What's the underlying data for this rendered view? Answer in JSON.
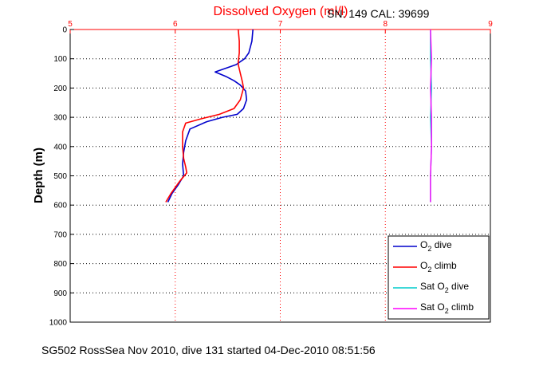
{
  "chart_data": {
    "type": "line",
    "title": "Dissolved Oxygen (ml/l)",
    "subtitle": "SN: 149  CAL: 39699",
    "xlabel": "",
    "ylabel": "Depth (m)",
    "xlim": [
      5,
      9
    ],
    "ylim": [
      1000,
      0
    ],
    "x_ticks": [
      "5",
      "6",
      "7",
      "8",
      "9"
    ],
    "x_tick_values": [
      5,
      6,
      7,
      8,
      9
    ],
    "y_ticks": [
      "0",
      "100",
      "200",
      "300",
      "400",
      "500",
      "600",
      "700",
      "800",
      "900",
      "1000"
    ],
    "y_tick_values": [
      0,
      100,
      200,
      300,
      400,
      500,
      600,
      700,
      800,
      900,
      1000
    ],
    "x_axis_position": "top",
    "grid": true,
    "legend_position": "bottom-right",
    "series": [
      {
        "name": "O2 dive",
        "color": "#0000cc",
        "points": [
          [
            6.74,
            0
          ],
          [
            6.73,
            40
          ],
          [
            6.7,
            80
          ],
          [
            6.66,
            100
          ],
          [
            6.58,
            120
          ],
          [
            6.5,
            130
          ],
          [
            6.38,
            145
          ],
          [
            6.48,
            160
          ],
          [
            6.56,
            175
          ],
          [
            6.62,
            190
          ],
          [
            6.67,
            210
          ],
          [
            6.68,
            240
          ],
          [
            6.65,
            270
          ],
          [
            6.59,
            290
          ],
          [
            6.45,
            300
          ],
          [
            6.3,
            315
          ],
          [
            6.14,
            340
          ],
          [
            6.1,
            380
          ],
          [
            6.08,
            420
          ],
          [
            6.07,
            460
          ],
          [
            6.08,
            500
          ],
          [
            6.03,
            530
          ],
          [
            5.97,
            560
          ],
          [
            5.93,
            590
          ]
        ]
      },
      {
        "name": "O2 climb",
        "color": "#ff0000",
        "points": [
          [
            6.6,
            0
          ],
          [
            6.61,
            40
          ],
          [
            6.61,
            80
          ],
          [
            6.6,
            110
          ],
          [
            6.6,
            120
          ],
          [
            6.62,
            150
          ],
          [
            6.64,
            180
          ],
          [
            6.65,
            200
          ],
          [
            6.62,
            240
          ],
          [
            6.56,
            270
          ],
          [
            6.42,
            290
          ],
          [
            6.25,
            305
          ],
          [
            6.1,
            320
          ],
          [
            6.07,
            350
          ],
          [
            6.07,
            400
          ],
          [
            6.08,
            440
          ],
          [
            6.1,
            470
          ],
          [
            6.11,
            490
          ],
          [
            6.04,
            520
          ],
          [
            5.96,
            560
          ],
          [
            5.91,
            590
          ]
        ]
      },
      {
        "name": "Sat O2 dive",
        "color": "#00cccc",
        "points": [
          [
            8.43,
            0
          ],
          [
            8.43,
            100
          ],
          [
            8.44,
            200
          ],
          [
            8.43,
            300
          ],
          [
            8.44,
            400
          ],
          [
            8.43,
            500
          ],
          [
            8.43,
            590
          ]
        ]
      },
      {
        "name": "Sat O2 climb",
        "color": "#ff00ff",
        "points": [
          [
            8.43,
            0
          ],
          [
            8.44,
            100
          ],
          [
            8.43,
            200
          ],
          [
            8.44,
            300
          ],
          [
            8.44,
            400
          ],
          [
            8.43,
            500
          ],
          [
            8.43,
            590
          ]
        ]
      }
    ],
    "legend": [
      {
        "name": "O",
        "sub": "2",
        "rest": " dive",
        "color": "#0000cc"
      },
      {
        "name": "O",
        "sub": "2",
        "rest": " climb",
        "color": "#ff0000"
      },
      {
        "name": "Sat O",
        "sub": "2",
        "rest": " dive",
        "color": "#00cccc"
      },
      {
        "name": "Sat O",
        "sub": "2",
        "rest": " climb",
        "color": "#ff00ff"
      }
    ],
    "axis_color": "#ff0000",
    "footer": "SG502 RossSea Nov 2010, dive 131 started 04-Dec-2010 08:51:56"
  }
}
